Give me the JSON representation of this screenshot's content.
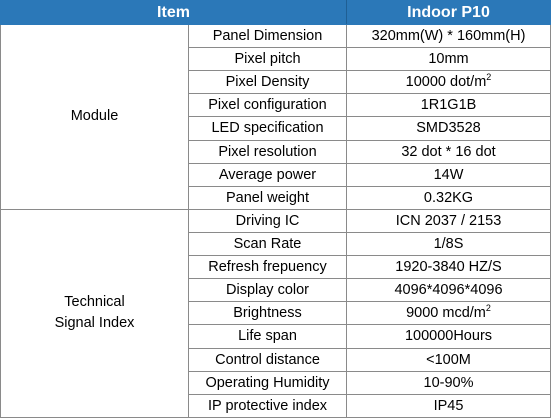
{
  "header": {
    "item": "Item",
    "model": "Indoor P10"
  },
  "groups": {
    "module": "Module",
    "technical_line1": "Technical",
    "technical_line2": "Signal Index"
  },
  "rows": [
    {
      "label": "Panel Dimension",
      "value": "320mm(W) * 160mm(H)"
    },
    {
      "label": "Pixel pitch",
      "value": "10mm"
    },
    {
      "label": "Pixel Density",
      "value": "10000 dot/m",
      "sup": "2"
    },
    {
      "label": "Pixel configuration",
      "value": "1R1G1B"
    },
    {
      "label": "LED specification",
      "value": "SMD3528"
    },
    {
      "label": "Pixel resolution",
      "value": "32 dot * 16 dot"
    },
    {
      "label": "Average power",
      "value": "14W"
    },
    {
      "label": "Panel weight",
      "value": "0.32KG"
    },
    {
      "label": "Driving IC",
      "value": "ICN 2037 / 2153"
    },
    {
      "label": "Scan Rate",
      "value": "1/8S"
    },
    {
      "label": "Refresh frepuency",
      "value": "1920-3840 HZ/S"
    },
    {
      "label": "Display color",
      "value": "4096*4096*4096"
    },
    {
      "label": "Brightness",
      "value": "9000 mcd/m",
      "sup": "2"
    },
    {
      "label": "Life span",
      "value": "100000Hours"
    },
    {
      "label": "Control distance",
      "value": "<100M"
    },
    {
      "label": "Operating Humidity",
      "value": "10-90%"
    },
    {
      "label": "IP protective index",
      "value": "IP45"
    }
  ],
  "colors": {
    "header_bg": "#2b78b8",
    "header_text": "#ffffff",
    "border": "#8a8a8a"
  }
}
